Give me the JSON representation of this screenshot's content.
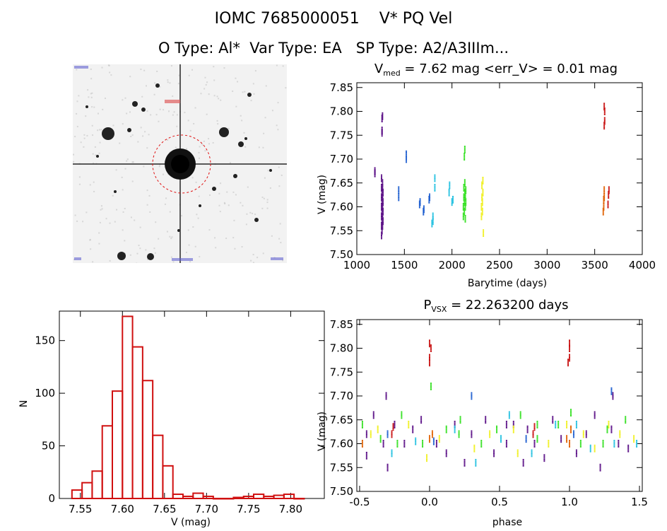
{
  "header": {
    "line1": "IOMC 7685000051    V* PQ Vel",
    "line2": "O Type: Al*  Var Type: EA   SP Type: A2/A3IIIm..."
  },
  "colors": {
    "purple": "#5a0f86",
    "blue": "#1f5fd0",
    "cyan": "#22c0e0",
    "green": "#33e020",
    "yellow": "#f0f020",
    "orange": "#e06000",
    "red": "#c81010",
    "hist_bar": "#d01010"
  },
  "chart_data": [
    {
      "type": "scatter",
      "panel": "light-curve",
      "title_prefix": "V",
      "title_sub": "med",
      "title_rest": " = 7.62 mag <err_V> = 0.01 mag",
      "xlabel": "Barytime (days)",
      "ylabel": "V (mag)",
      "xlim": [
        1000,
        4000
      ],
      "ylim": [
        7.86,
        7.5
      ],
      "xticks": [
        "1000",
        "1500",
        "2000",
        "2500",
        "3000",
        "3500",
        "4000"
      ],
      "yticks": [
        "7.50",
        "7.55",
        "7.60",
        "7.65",
        "7.70",
        "7.75",
        "7.80",
        "7.85"
      ],
      "series": [
        {
          "color": "purple",
          "x": [
            1190,
            1190,
            1260,
            1260,
            1260,
            1260,
            1260,
            1260,
            1260,
            1265,
            1265,
            1265,
            1265,
            1265,
            1270,
            1270,
            1270,
            1270,
            1270,
            1275,
            1275,
            1275,
            1275,
            1270,
            1265,
            1265,
            1265,
            1270
          ],
          "y": [
            7.67,
            7.675,
            7.54,
            7.56,
            7.58,
            7.6,
            7.62,
            7.64,
            7.66,
            7.55,
            7.57,
            7.59,
            7.61,
            7.63,
            7.56,
            7.58,
            7.6,
            7.62,
            7.64,
            7.57,
            7.59,
            7.61,
            7.63,
            7.65,
            7.755,
            7.76,
            7.785,
            7.79
          ]
        },
        {
          "color": "blue",
          "x": [
            1440,
            1440,
            1520,
            1520,
            1660,
            1665,
            1700,
            1705,
            1760,
            1765
          ],
          "y": [
            7.62,
            7.635,
            7.7,
            7.71,
            7.605,
            7.61,
            7.59,
            7.595,
            7.615,
            7.62
          ]
        },
        {
          "color": "cyan",
          "x": [
            1790,
            1800,
            1800,
            1820,
            1820,
            1970,
            1975,
            2000,
            2010
          ],
          "y": [
            7.565,
            7.57,
            7.58,
            7.64,
            7.66,
            7.63,
            7.645,
            7.61,
            7.615
          ]
        },
        {
          "color": "green",
          "x": [
            2120,
            2120,
            2125,
            2125,
            2130,
            2130,
            2135,
            2135,
            2140,
            2140,
            2140,
            2145,
            2145,
            2130,
            2135
          ],
          "y": [
            7.58,
            7.6,
            7.62,
            7.64,
            7.59,
            7.61,
            7.63,
            7.65,
            7.575,
            7.6,
            7.62,
            7.61,
            7.635,
            7.705,
            7.72
          ]
        },
        {
          "color": "yellow",
          "x": [
            2310,
            2310,
            2315,
            2315,
            2320,
            2320,
            2325,
            2325,
            2330
          ],
          "y": [
            7.58,
            7.6,
            7.62,
            7.645,
            7.59,
            7.61,
            7.63,
            7.655,
            7.545
          ]
        },
        {
          "color": "orange",
          "x": [
            3590,
            3595,
            3595,
            3600,
            3600
          ],
          "y": [
            7.59,
            7.6,
            7.615,
            7.62,
            7.635
          ]
        },
        {
          "color": "red",
          "x": [
            3600,
            3605,
            3605,
            3600,
            3640,
            3645,
            3650
          ],
          "y": [
            7.77,
            7.78,
            7.8,
            7.81,
            7.605,
            7.625,
            7.635
          ]
        }
      ]
    },
    {
      "type": "bar",
      "panel": "histogram",
      "xlabel": "V (mag)",
      "ylabel": "N",
      "xlim": [
        7.525,
        7.84
      ],
      "ylim": [
        0,
        178
      ],
      "xticks": [
        "7.55",
        "7.60",
        "7.65",
        "7.70",
        "7.75",
        "7.80"
      ],
      "yticks": [
        "0",
        "50",
        "100",
        "150"
      ],
      "bin_starts": [
        7.54,
        7.552,
        7.564,
        7.576,
        7.588,
        7.6,
        7.612,
        7.624,
        7.636,
        7.648,
        7.66,
        7.672,
        7.684,
        7.696,
        7.708,
        7.72,
        7.732,
        7.744,
        7.756,
        7.768,
        7.78,
        7.792,
        7.804
      ],
      "bin_width": 0.012,
      "values": [
        8,
        15,
        26,
        69,
        102,
        173,
        144,
        112,
        60,
        31,
        4,
        2,
        5,
        2,
        0,
        0,
        1,
        2,
        4,
        2,
        3,
        4,
        0
      ]
    },
    {
      "type": "scatter",
      "panel": "phase",
      "title_prefix": "P",
      "title_sub": "VSX",
      "title_rest": " = 22.263200 days",
      "xlabel": "phase",
      "ylabel": "V (mag)",
      "xlim": [
        -0.52,
        1.52
      ],
      "ylim": [
        7.86,
        7.5
      ],
      "xticks": [
        "-0.5",
        "0.0",
        "0.5",
        "1.0",
        "1.5"
      ],
      "yticks": [
        "7.50",
        "7.55",
        "7.60",
        "7.65",
        "7.70",
        "7.75",
        "7.80",
        "7.85"
      ],
      "series": [
        {
          "color": "purple",
          "x": [
            -0.45,
            -0.4,
            -0.33,
            -0.3,
            -0.25,
            -0.18,
            -0.12,
            -0.06,
            0.05,
            0.12,
            0.18,
            0.25,
            0.3,
            0.4,
            0.46,
            0.55,
            0.6,
            0.67,
            0.7,
            0.75,
            0.82,
            0.88,
            0.94,
            1.05,
            1.12,
            1.18,
            1.22,
            1.3,
            1.35,
            1.42,
            -0.31,
            1.31,
            -0.45,
            0.55
          ],
          "y": [
            7.62,
            7.66,
            7.6,
            7.55,
            7.64,
            7.6,
            7.63,
            7.65,
            7.6,
            7.58,
            7.64,
            7.56,
            7.62,
            7.65,
            7.58,
            7.6,
            7.64,
            7.56,
            7.63,
            7.6,
            7.57,
            7.65,
            7.61,
            7.58,
            7.62,
            7.66,
            7.55,
            7.63,
            7.6,
            7.59,
            7.7,
            7.7,
            7.575,
            7.64
          ]
        },
        {
          "color": "green",
          "x": [
            -0.48,
            -0.35,
            -0.2,
            -0.05,
            0.12,
            0.22,
            0.37,
            0.48,
            0.65,
            0.77,
            0.92,
            1.08,
            1.27,
            1.4,
            -0.23,
            0.21,
            0.77,
            1.24,
            0.01,
            1.01
          ],
          "y": [
            7.64,
            7.61,
            7.66,
            7.6,
            7.63,
            7.65,
            7.6,
            7.63,
            7.66,
            7.61,
            7.64,
            7.6,
            7.63,
            7.65,
            7.6,
            7.62,
            7.64,
            7.6,
            7.72,
            7.665
          ]
        },
        {
          "color": "yellow",
          "x": [
            -0.42,
            -0.15,
            0.07,
            0.32,
            0.43,
            0.6,
            0.85,
            1.1,
            1.36,
            1.46,
            -0.37,
            0.63,
            1.18,
            -0.02,
            0.98,
            1.28
          ],
          "y": [
            7.62,
            7.64,
            7.61,
            7.59,
            7.62,
            7.63,
            7.6,
            7.62,
            7.62,
            7.61,
            7.63,
            7.58,
            7.59,
            7.57,
            7.64,
            7.64
          ]
        },
        {
          "color": "cyan",
          "x": [
            -0.1,
            0.18,
            0.33,
            0.57,
            0.73,
            0.9,
            1.15,
            1.32,
            -0.27,
            0.51,
            1.05,
            1.48
          ],
          "y": [
            7.605,
            7.63,
            7.56,
            7.66,
            7.58,
            7.64,
            7.59,
            7.6,
            7.58,
            7.61,
            7.64,
            7.6
          ]
        },
        {
          "color": "blue",
          "x": [
            -0.3,
            0.3,
            0.69,
            1.3,
            0.03,
            1.03
          ],
          "y": [
            7.62,
            7.7,
            7.61,
            7.71,
            7.605,
            7.62
          ]
        },
        {
          "color": "orange",
          "x": [
            -0.48,
            0.0,
            0.02,
            0.98,
            1.0,
            1.01
          ],
          "y": [
            7.6,
            7.61,
            7.62,
            7.61,
            7.6,
            7.63
          ]
        },
        {
          "color": "red",
          "x": [
            -0.27,
            -0.26,
            0.0,
            0.0,
            0.01,
            0.0,
            0.74,
            0.75,
            0.99,
            1.0,
            1.0,
            1.0
          ],
          "y": [
            7.62,
            7.635,
            7.77,
            7.78,
            7.8,
            7.81,
            7.62,
            7.635,
            7.77,
            7.78,
            7.8,
            7.81
          ]
        }
      ]
    }
  ]
}
